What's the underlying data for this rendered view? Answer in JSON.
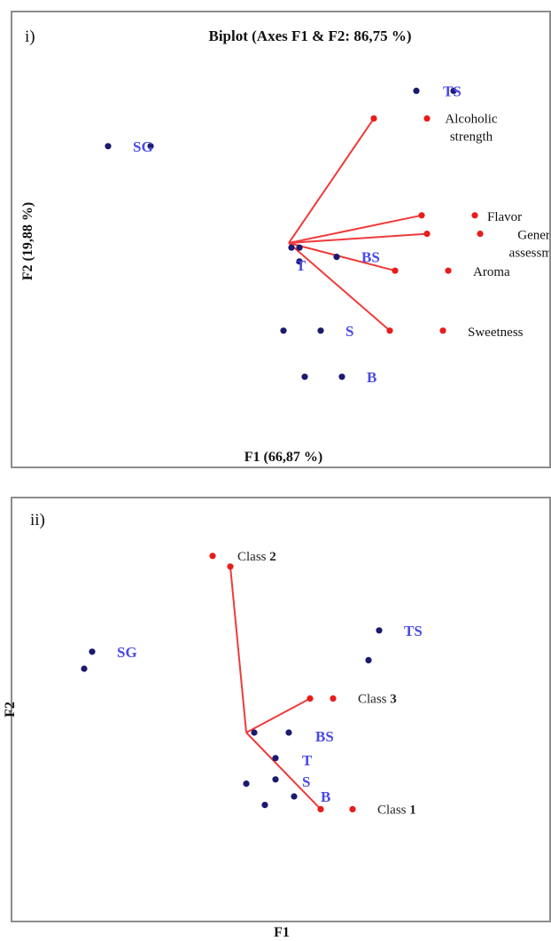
{
  "chart_data": [
    {
      "type": "scatter",
      "panel_tag": "i)",
      "title": "Biplot (Axes F1 & F2: 86,75 %)",
      "xlabel": "F1 (66,87 %)",
      "ylabel": "F2 (19,88 %)",
      "xlim": [
        0,
        100
      ],
      "ylim": [
        0,
        100
      ],
      "origin": [
        52.0,
        50.0
      ],
      "observation_color": "#1a1a6e",
      "variable_color": "#e81c1c",
      "vector_color": "#f03a3a",
      "label_color": "#4a4ae6",
      "observations": [
        {
          "label": "TS",
          "x": 76.0,
          "y": 83.0
        },
        {
          "label": "SG",
          "x": 18.0,
          "y": 71.0
        },
        {
          "label": "BS",
          "x": 61.0,
          "y": 47.0
        },
        {
          "label": "T",
          "x": 54.0,
          "y": 46.0
        },
        {
          "label": "S",
          "x": 58.0,
          "y": 31.0
        },
        {
          "label": "B",
          "x": 62.0,
          "y": 21.0
        }
      ],
      "extra_points": [
        {
          "x": 83.0,
          "y": 83.0
        },
        {
          "x": 26.0,
          "y": 71.0
        },
        {
          "x": 52.5,
          "y": 49.0
        },
        {
          "x": 54.0,
          "y": 49.0
        },
        {
          "x": 51.0,
          "y": 31.0
        },
        {
          "x": 55.0,
          "y": 21.0
        }
      ],
      "variables": [
        {
          "label": "Alcoholic strength",
          "x": 68.0,
          "y": 77.0
        },
        {
          "label": "Flavor",
          "x": 77.0,
          "y": 56.0
        },
        {
          "label": "General assessment",
          "x": 78.0,
          "y": 52.0
        },
        {
          "label": "Aroma",
          "x": 72.0,
          "y": 44.0
        },
        {
          "label": "Sweetness",
          "x": 71.0,
          "y": 31.0
        }
      ]
    },
    {
      "type": "scatter",
      "panel_tag": "ii)",
      "xlabel": "F1",
      "ylabel": "F2",
      "xlim": [
        0,
        100
      ],
      "ylim": [
        0,
        100
      ],
      "origin": [
        44.0,
        45.0
      ],
      "observation_color": "#1a1a6e",
      "variable_color": "#e81c1c",
      "vector_color": "#f03a3a",
      "label_color": "#4a4ae6",
      "observations": [
        {
          "label": "TS",
          "x": 69.0,
          "y": 69.0
        },
        {
          "label": "SG",
          "x": 15.0,
          "y": 64.0
        },
        {
          "label": "BS",
          "x": 52.0,
          "y": 45.0
        },
        {
          "label": "T",
          "x": 49.5,
          "y": 39.0
        },
        {
          "label": "S",
          "x": 49.5,
          "y": 34.0
        },
        {
          "label": "B",
          "x": 53.0,
          "y": 30.0
        }
      ],
      "extra_points": [
        {
          "x": 67.0,
          "y": 62.0
        },
        {
          "x": 13.5,
          "y": 60.0
        },
        {
          "x": 45.5,
          "y": 45.0
        },
        {
          "x": 44.0,
          "y": 33.0
        },
        {
          "x": 47.5,
          "y": 28.0
        }
      ],
      "classes": [
        {
          "label": "Class 2",
          "label_bold": "2",
          "x": 41.0,
          "y": 84.0
        },
        {
          "label": "Class 3",
          "label_bold": "3",
          "x": 56.0,
          "y": 53.0
        },
        {
          "label": "Class 1",
          "label_bold": "1",
          "x": 58.0,
          "y": 27.0
        }
      ]
    }
  ]
}
